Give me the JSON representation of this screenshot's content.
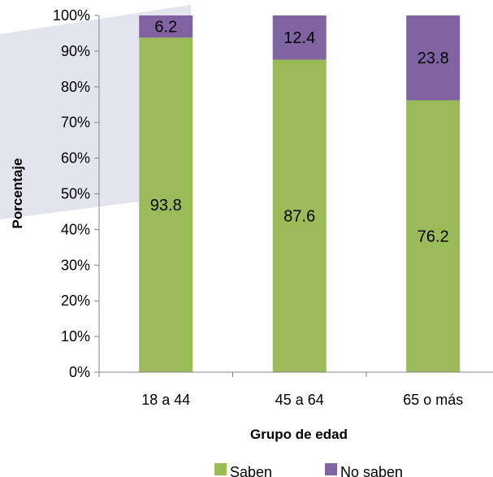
{
  "chart_data": {
    "type": "bar",
    "stacked": true,
    "categories": [
      "18 a 44",
      "45 a 64",
      "65 o más"
    ],
    "series": [
      {
        "name": "Saben",
        "values": [
          93.8,
          87.6,
          76.2
        ],
        "labels": [
          "93.8",
          "87.6",
          "76.2"
        ],
        "color": "#9BBB59"
      },
      {
        "name": "No saben",
        "values": [
          6.2,
          12.4,
          23.8
        ],
        "labels": [
          "6.2",
          "12.4",
          "23.8"
        ],
        "color": "#8064A2"
      }
    ],
    "xlabel": "Grupo de edad",
    "ylabel": "Porcentaje",
    "ylim": [
      0,
      100
    ],
    "y_ticks": [
      "0%",
      "10%",
      "20%",
      "30%",
      "40%",
      "50%",
      "60%",
      "70%",
      "80%",
      "90%",
      "100%"
    ],
    "grid": false,
    "legend_position": "bottom"
  },
  "colors": {
    "background": "#ffffff",
    "decorative_band": "#E4E4EE",
    "axis": "#868686"
  }
}
